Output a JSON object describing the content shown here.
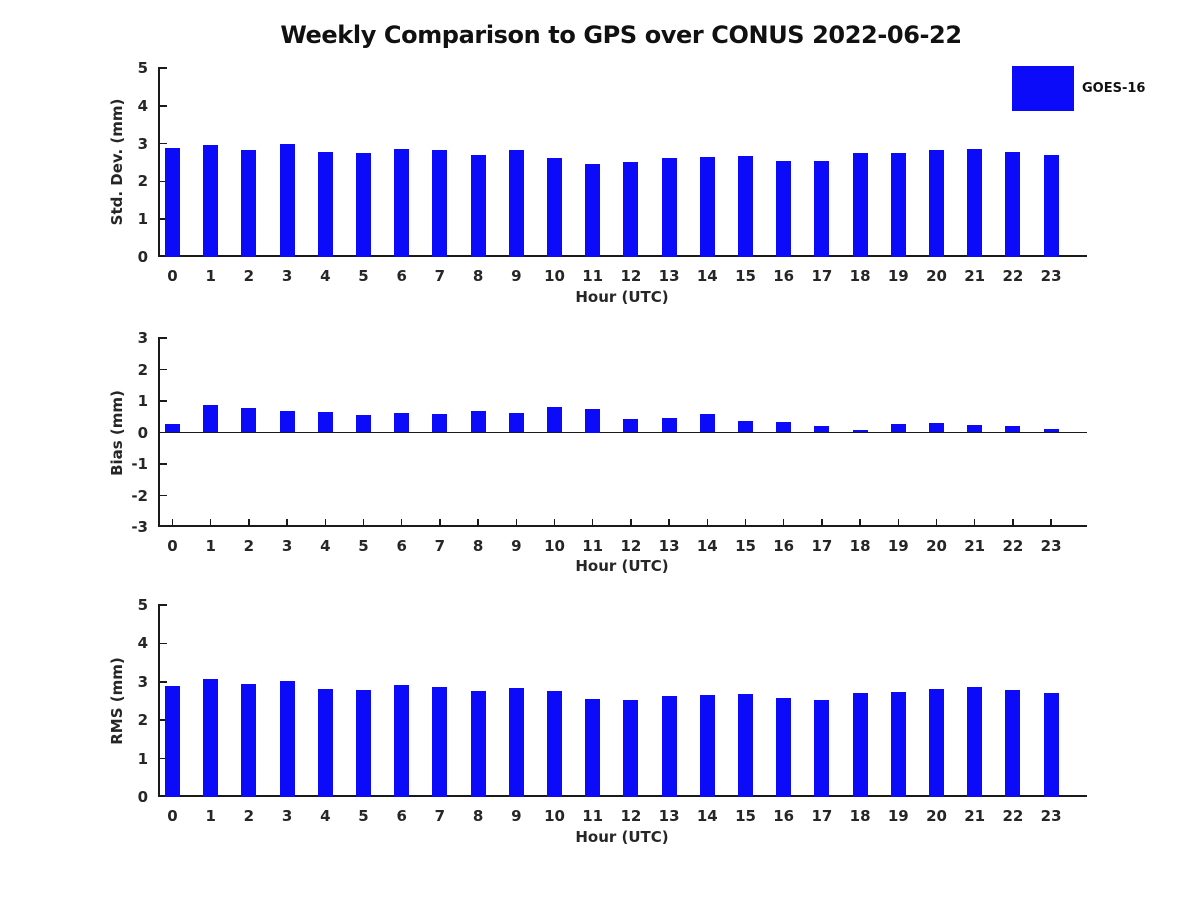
{
  "title": "Weekly Comparison to GPS over CONUS 2022-06-22",
  "legend": {
    "label": "GOES-16",
    "color": "#0b0bfa",
    "position": "top-right"
  },
  "colors": {
    "bar": "#0b0bfa",
    "axis": "#1a1a1a",
    "text": "#262626",
    "background": "#ffffff"
  },
  "chart_data": [
    {
      "type": "bar",
      "name": "std-dev",
      "series_name": "GOES-16",
      "xlabel": "Hour (UTC)",
      "ylabel": "Std. Dev. (mm)",
      "categories": [
        "0",
        "1",
        "2",
        "3",
        "4",
        "5",
        "6",
        "7",
        "8",
        "9",
        "10",
        "11",
        "12",
        "13",
        "14",
        "15",
        "16",
        "17",
        "18",
        "19",
        "20",
        "21",
        "22",
        "23"
      ],
      "values": [
        2.89,
        2.96,
        2.84,
        3.0,
        2.78,
        2.74,
        2.87,
        2.82,
        2.71,
        2.82,
        2.63,
        2.47,
        2.52,
        2.61,
        2.64,
        2.66,
        2.53,
        2.53,
        2.74,
        2.75,
        2.82,
        2.87,
        2.77,
        2.71
      ],
      "ylim": [
        0,
        5
      ],
      "yticks": [
        0,
        1,
        2,
        3,
        4,
        5
      ],
      "grid": false
    },
    {
      "type": "bar",
      "name": "bias",
      "series_name": "GOES-16",
      "xlabel": "Hour (UTC)",
      "ylabel": "Bias (mm)",
      "categories": [
        "0",
        "1",
        "2",
        "3",
        "4",
        "5",
        "6",
        "7",
        "8",
        "9",
        "10",
        "11",
        "12",
        "13",
        "14",
        "15",
        "16",
        "17",
        "18",
        "19",
        "20",
        "21",
        "22",
        "23"
      ],
      "values": [
        0.28,
        0.88,
        0.79,
        0.67,
        0.66,
        0.54,
        0.63,
        0.6,
        0.69,
        0.61,
        0.82,
        0.75,
        0.43,
        0.47,
        0.58,
        0.35,
        0.32,
        0.22,
        0.07,
        0.28,
        0.31,
        0.24,
        0.21,
        0.1
      ],
      "ylim": [
        -3,
        3
      ],
      "yticks": [
        -3,
        -2,
        -1,
        0,
        1,
        2,
        3
      ],
      "grid": false
    },
    {
      "type": "bar",
      "name": "rms",
      "series_name": "GOES-16",
      "xlabel": "Hour (UTC)",
      "ylabel": "RMS (mm)",
      "categories": [
        "0",
        "1",
        "2",
        "3",
        "4",
        "5",
        "6",
        "7",
        "8",
        "9",
        "10",
        "11",
        "12",
        "13",
        "14",
        "15",
        "16",
        "17",
        "18",
        "19",
        "20",
        "21",
        "22",
        "23"
      ],
      "values": [
        2.89,
        3.06,
        2.94,
        3.03,
        2.81,
        2.79,
        2.92,
        2.87,
        2.77,
        2.84,
        2.75,
        2.56,
        2.53,
        2.63,
        2.66,
        2.69,
        2.57,
        2.53,
        2.72,
        2.74,
        2.82,
        2.87,
        2.78,
        2.72
      ],
      "ylim": [
        0,
        5
      ],
      "yticks": [
        0,
        1,
        2,
        3,
        4,
        5
      ],
      "grid": false
    }
  ]
}
